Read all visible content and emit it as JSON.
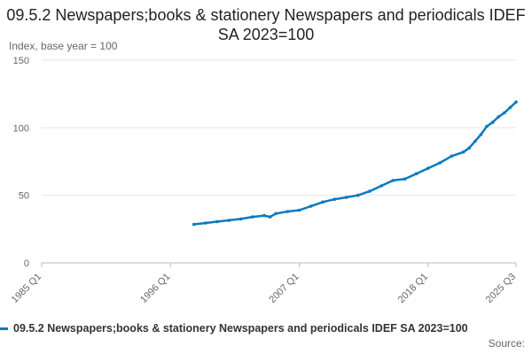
{
  "chart_data": {
    "type": "line",
    "title": "09.5.2 Newspapers;books & stationery Newspapers and periodicals IDEF SA 2023=100",
    "ylabel": "Index, base year = 100",
    "xlabel": "",
    "ylim": [
      0,
      150
    ],
    "yticks": [
      0,
      50,
      100,
      150
    ],
    "xlim": [
      "1985 Q1",
      "2025 Q3"
    ],
    "xticks": [
      "1985 Q1",
      "1996 Q1",
      "2007 Q1",
      "2018 Q1",
      "2025 Q3"
    ],
    "grid": "horizontal",
    "legend_position": "bottom",
    "series": [
      {
        "name": "09.5.2 Newspapers;books & stationery Newspapers and periodicals IDEF SA 2023=100",
        "color": "#0a7abf",
        "x": [
          "1998 Q1",
          "1999 Q1",
          "2000 Q1",
          "2001 Q1",
          "2002 Q1",
          "2003 Q1",
          "2004 Q1",
          "2004 Q3",
          "2005 Q1",
          "2006 Q1",
          "2007 Q1",
          "2008 Q1",
          "2009 Q1",
          "2010 Q1",
          "2011 Q1",
          "2012 Q1",
          "2013 Q1",
          "2014 Q1",
          "2015 Q1",
          "2016 Q1",
          "2017 Q1",
          "2018 Q1",
          "2019 Q1",
          "2020 Q1",
          "2021 Q1",
          "2021 Q3",
          "2022 Q1",
          "2022 Q3",
          "2023 Q1",
          "2023 Q3",
          "2024 Q1",
          "2024 Q3",
          "2025 Q1",
          "2025 Q3"
        ],
        "values": [
          28.5,
          29.5,
          30.5,
          31.5,
          32.5,
          34.0,
          35.0,
          34.0,
          36.5,
          38.0,
          39.0,
          42.0,
          45.0,
          47.0,
          48.5,
          50.0,
          53.0,
          57.0,
          61.0,
          62.0,
          66.0,
          70.0,
          74.0,
          79.0,
          82.0,
          85.0,
          90.0,
          95.0,
          101.0,
          104.0,
          108.0,
          111.0,
          115.0,
          119.0
        ]
      }
    ]
  },
  "footer": {
    "legend_label": "09.5.2 Newspapers;books & stationery Newspapers and periodicals IDEF SA 2023=100",
    "source_label": "Source:"
  }
}
